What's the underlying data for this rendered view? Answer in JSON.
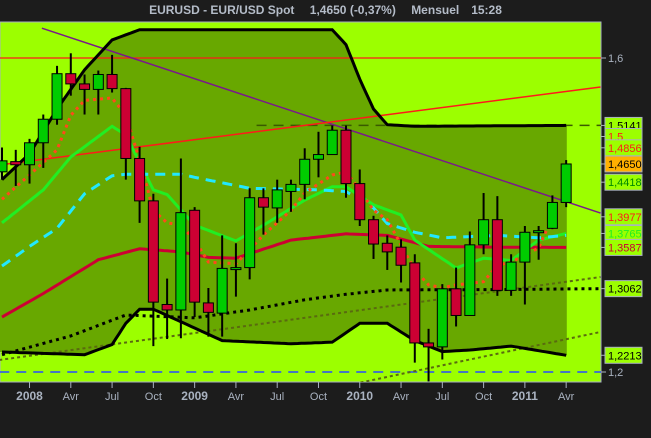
{
  "header": {
    "symbol": "EURUSD - EUR/USD Spot",
    "quote": "1,4650 (-0,37%)",
    "period": "Mensuel",
    "time": "15:28"
  },
  "colors": {
    "background": "#1c1c1c",
    "plot_outside_bands": "#9cff00",
    "plot_inside_bands": "#68a800",
    "candle_up": "#00cc00",
    "candle_down": "#cc0033",
    "axis_text": "#a9b2c0"
  },
  "chart_data": {
    "type": "candlestick",
    "title": "",
    "xlabel": "",
    "ylabel": "",
    "ylim": [
      1.16,
      1.64
    ],
    "grid": false,
    "x_tick_labels": [
      {
        "month": "2008-01",
        "label": "2008",
        "year": true
      },
      {
        "month": "2008-04",
        "label": "Avr"
      },
      {
        "month": "2008-07",
        "label": "Jul"
      },
      {
        "month": "2008-10",
        "label": "Oct"
      },
      {
        "month": "2009-01",
        "label": "2009",
        "year": true
      },
      {
        "month": "2009-04",
        "label": "Avr"
      },
      {
        "month": "2009-07",
        "label": "Jul"
      },
      {
        "month": "2009-10",
        "label": "Oct"
      },
      {
        "month": "2010-01",
        "label": "2010",
        "year": true
      },
      {
        "month": "2010-04",
        "label": "Avr"
      },
      {
        "month": "2010-07",
        "label": "Jul"
      },
      {
        "month": "2010-10",
        "label": "Oct"
      },
      {
        "month": "2011-01",
        "label": "2011",
        "year": true
      },
      {
        "month": "2011-04",
        "label": "Avr"
      }
    ],
    "y_tick_labels": [
      {
        "value": 1.6,
        "label": "1,6"
      },
      {
        "value": 1.2,
        "label": "1,2"
      }
    ],
    "candles": {
      "month": [
        "2007-11",
        "2007-12",
        "2008-01",
        "2008-02",
        "2008-03",
        "2008-04",
        "2008-05",
        "2008-06",
        "2008-07",
        "2008-08",
        "2008-09",
        "2008-10",
        "2008-11",
        "2008-12",
        "2009-01",
        "2009-02",
        "2009-03",
        "2009-04",
        "2009-05",
        "2009-06",
        "2009-07",
        "2009-08",
        "2009-09",
        "2009-10",
        "2009-11",
        "2009-12",
        "2010-01",
        "2010-02",
        "2010-03",
        "2010-04",
        "2010-05",
        "2010-06",
        "2010-07",
        "2010-08",
        "2010-09",
        "2010-10",
        "2010-11",
        "2010-12",
        "2011-01",
        "2011-02",
        "2011-03",
        "2011-04"
      ],
      "open": [
        1.455,
        1.468,
        1.464,
        1.492,
        1.522,
        1.58,
        1.567,
        1.56,
        1.579,
        1.561,
        1.472,
        1.418,
        1.286,
        1.279,
        1.406,
        1.288,
        1.275,
        1.332,
        1.333,
        1.422,
        1.409,
        1.43,
        1.439,
        1.471,
        1.477,
        1.508,
        1.44,
        1.394,
        1.364,
        1.359,
        1.339,
        1.237,
        1.232,
        1.306,
        1.272,
        1.362,
        1.394,
        1.304,
        1.34,
        1.378,
        1.383,
        1.416
      ],
      "high": [
        1.486,
        1.483,
        1.497,
        1.528,
        1.59,
        1.606,
        1.579,
        1.584,
        1.604,
        1.562,
        1.487,
        1.427,
        1.319,
        1.472,
        1.41,
        1.307,
        1.374,
        1.364,
        1.434,
        1.434,
        1.445,
        1.445,
        1.485,
        1.506,
        1.514,
        1.514,
        1.458,
        1.399,
        1.374,
        1.369,
        1.35,
        1.255,
        1.312,
        1.333,
        1.379,
        1.428,
        1.424,
        1.35,
        1.386,
        1.386,
        1.425,
        1.47
      ],
      "low": [
        1.445,
        1.437,
        1.44,
        1.46,
        1.515,
        1.552,
        1.528,
        1.528,
        1.556,
        1.445,
        1.39,
        1.233,
        1.242,
        1.243,
        1.27,
        1.245,
        1.245,
        1.296,
        1.318,
        1.375,
        1.39,
        1.404,
        1.42,
        1.448,
        1.48,
        1.422,
        1.386,
        1.344,
        1.33,
        1.314,
        1.212,
        1.188,
        1.216,
        1.258,
        1.273,
        1.35,
        1.297,
        1.297,
        1.286,
        1.343,
        1.382,
        1.41
      ],
      "close": [
        1.469,
        1.464,
        1.492,
        1.522,
        1.58,
        1.567,
        1.56,
        1.579,
        1.561,
        1.472,
        1.418,
        1.289,
        1.279,
        1.403,
        1.289,
        1.276,
        1.332,
        1.333,
        1.422,
        1.41,
        1.432,
        1.439,
        1.471,
        1.477,
        1.508,
        1.44,
        1.394,
        1.363,
        1.353,
        1.336,
        1.237,
        1.232,
        1.306,
        1.272,
        1.362,
        1.394,
        1.304,
        1.34,
        1.378,
        1.38,
        1.416,
        1.465
      ]
    },
    "bollinger_upper": [
      [
        0,
        1.445
      ],
      [
        2,
        1.478
      ],
      [
        4,
        1.535
      ],
      [
        6,
        1.585
      ],
      [
        8,
        1.623
      ],
      [
        10,
        1.636
      ],
      [
        24,
        1.636
      ],
      [
        25,
        1.617
      ],
      [
        26,
        1.573
      ],
      [
        27,
        1.535
      ],
      [
        28,
        1.515
      ],
      [
        30,
        1.513
      ],
      [
        41,
        1.5141
      ]
    ],
    "bollinger_lower": [
      [
        0,
        1.2255
      ],
      [
        6,
        1.222
      ],
      [
        8,
        1.235
      ],
      [
        9,
        1.262
      ],
      [
        10,
        1.28
      ],
      [
        11,
        1.28
      ],
      [
        13,
        1.264
      ],
      [
        16,
        1.24
      ],
      [
        21,
        1.236
      ],
      [
        24,
        1.238
      ],
      [
        26,
        1.262
      ],
      [
        28,
        1.262
      ],
      [
        30,
        1.24
      ],
      [
        32,
        1.226
      ],
      [
        34,
        1.228
      ],
      [
        37,
        1.233
      ],
      [
        41,
        1.2213
      ]
    ],
    "overlays": [
      {
        "id": "ma-crimson",
        "color": "#cc0033",
        "style": "solid",
        "points": [
          [
            0,
            1.27
          ],
          [
            3,
            1.3
          ],
          [
            7,
            1.343
          ],
          [
            10,
            1.357
          ],
          [
            13,
            1.353
          ],
          [
            15,
            1.346
          ],
          [
            17,
            1.345
          ],
          [
            21,
            1.368
          ],
          [
            25,
            1.376
          ],
          [
            28,
            1.374
          ],
          [
            31,
            1.36
          ],
          [
            36,
            1.359
          ],
          [
            41,
            1.3587
          ]
        ]
      },
      {
        "id": "ma-green",
        "color": "#22ee22",
        "style": "solid",
        "points": [
          [
            0,
            1.39
          ],
          [
            3,
            1.432
          ],
          [
            5,
            1.474
          ],
          [
            8,
            1.513
          ],
          [
            9,
            1.502
          ],
          [
            11,
            1.432
          ],
          [
            12,
            1.426
          ],
          [
            14,
            1.387
          ],
          [
            17,
            1.367
          ],
          [
            19,
            1.387
          ],
          [
            22,
            1.419
          ],
          [
            24,
            1.436
          ],
          [
            25,
            1.436
          ],
          [
            27,
            1.413
          ],
          [
            29,
            1.4
          ],
          [
            30,
            1.368
          ],
          [
            33,
            1.3325
          ],
          [
            35,
            1.345
          ],
          [
            37,
            1.342
          ],
          [
            39,
            1.368
          ],
          [
            41,
            1.3765
          ]
        ]
      },
      {
        "id": "ma-cyan",
        "color": "#22e8ff",
        "style": "dash",
        "points": [
          [
            0,
            1.335
          ],
          [
            2,
            1.36
          ],
          [
            4,
            1.383
          ],
          [
            6,
            1.427
          ],
          [
            8,
            1.45
          ],
          [
            9,
            1.452
          ],
          [
            13,
            1.452
          ],
          [
            14,
            1.448
          ],
          [
            18,
            1.434
          ],
          [
            23,
            1.432
          ],
          [
            25,
            1.43
          ],
          [
            27,
            1.409
          ],
          [
            28,
            1.389
          ],
          [
            30,
            1.378
          ],
          [
            32,
            1.371
          ],
          [
            36,
            1.374
          ],
          [
            39,
            1.371
          ],
          [
            41,
            1.374
          ]
        ]
      },
      {
        "id": "ma-orange",
        "color": "#ff4a1a",
        "style": "dot",
        "points": [
          [
            0,
            1.42
          ],
          [
            2,
            1.451
          ],
          [
            4,
            1.483
          ],
          [
            5,
            1.527
          ],
          [
            6,
            1.546
          ],
          [
            8,
            1.549
          ],
          [
            9,
            1.527
          ],
          [
            10,
            1.47
          ],
          [
            11,
            1.406
          ],
          [
            12,
            1.39
          ],
          [
            13,
            1.387
          ],
          [
            14,
            1.368
          ],
          [
            15,
            1.34
          ],
          [
            17,
            1.338
          ],
          [
            19,
            1.3745
          ],
          [
            21,
            1.406
          ],
          [
            22,
            1.428
          ],
          [
            24,
            1.451
          ],
          [
            25,
            1.455
          ],
          [
            26,
            1.432
          ],
          [
            27,
            1.406
          ],
          [
            28,
            1.394
          ],
          [
            29,
            1.362
          ],
          [
            30,
            1.33
          ],
          [
            31,
            1.311
          ],
          [
            32,
            1.307
          ],
          [
            33,
            1.311
          ],
          [
            35,
            1.315
          ],
          [
            36,
            1.336
          ],
          [
            37,
            1.34
          ],
          [
            39,
            1.358
          ],
          [
            40,
            1.3977
          ]
        ]
      },
      {
        "id": "ma-black-dotted",
        "color": "#000000",
        "style": "dot",
        "points": [
          [
            0,
            1.222
          ],
          [
            5,
            1.246
          ],
          [
            9,
            1.2726
          ],
          [
            14,
            1.269
          ],
          [
            18,
            1.279
          ],
          [
            22,
            1.292
          ],
          [
            25,
            1.299
          ],
          [
            28,
            1.3045
          ],
          [
            36,
            1.305
          ],
          [
            43.5,
            1.3062
          ]
        ]
      }
    ],
    "trend_lines": [
      {
        "id": "trend-purple",
        "color": "#7a1a8a",
        "style": "solid",
        "from": [
          2.9,
          1.638
        ],
        "to": [
          43.5,
          1.4025
        ]
      },
      {
        "id": "trend-red-rising",
        "color": "#ff1a1a",
        "style": "solid",
        "from": [
          -0.2,
          1.4637
        ],
        "to": [
          43.5,
          1.563
        ]
      },
      {
        "id": "trend-olive-upper",
        "color": "#5a6a10",
        "style": "dot",
        "from": [
          -0.2,
          1.2153
        ],
        "to": [
          43.5,
          1.321
        ]
      },
      {
        "id": "trend-olive-lower",
        "color": "#5a6a10",
        "style": "dot",
        "from": [
          25.2,
          1.1834
        ],
        "to": [
          43.5,
          1.251
        ]
      }
    ],
    "horizontal_lines": [
      {
        "id": "level-1-6",
        "value": 1.6,
        "color": "#ff1a1a",
        "style": "solid",
        "from_month": -0.2
      },
      {
        "id": "level-1-5141",
        "value": 1.5141,
        "color": "#3a5a00",
        "style": "dash",
        "from_month": 18.5
      },
      {
        "id": "level-1-2",
        "value": 1.2,
        "color": "#2a4cff",
        "style": "dash",
        "from_month": -0.2
      }
    ],
    "price_labels": [
      {
        "value": 1.5141,
        "label": "1,5141",
        "color": "#000000",
        "bg": "#9cff00"
      },
      {
        "value": 1.5,
        "label": "1,5",
        "color": "#ff1a1a",
        "bg": "#9cff00"
      },
      {
        "value": 1.4856,
        "label": "1,4856",
        "color": "#ff1a1a",
        "bg": "#9cff00"
      },
      {
        "value": 1.4418,
        "label": "1,4418",
        "color": "#008800",
        "bg": "#9cff00"
      },
      {
        "value": 1.465,
        "label": "1,4650",
        "color": "#000000",
        "bg": "#ffb000"
      },
      {
        "value": 1.3977,
        "label": "1,3977",
        "color": "#ff1a1a",
        "bg": "#9cff00"
      },
      {
        "value": 1.3765,
        "label": "1,3765",
        "color": "#22ee22",
        "bg": "#9cff00"
      },
      {
        "value": 1.3587,
        "label": "1,3587",
        "color": "#cc0033",
        "bg": "#9cff00"
      },
      {
        "value": 1.3062,
        "label": "1,3062",
        "color": "#000000",
        "bg": "#9cff00"
      },
      {
        "value": 1.2213,
        "label": "1,2213",
        "color": "#000000",
        "bg": "#9cff00"
      }
    ]
  }
}
